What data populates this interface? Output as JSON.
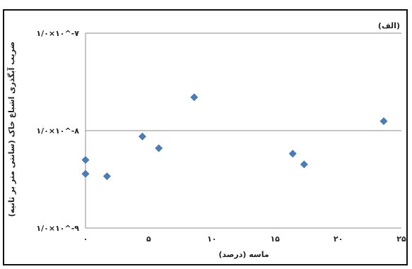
{
  "chart_data": {
    "type": "scatter",
    "panel_label": "(الف)",
    "xlabel": "ماسه (درصد)",
    "ylabel": "ضریب آبگذری اشباع خاک (سانتی متر بر ثانیه)",
    "x_ticks": [
      {
        "value": 0,
        "label": "۰"
      },
      {
        "value": 5,
        "label": "۵"
      },
      {
        "value": 10,
        "label": "۱۰"
      },
      {
        "value": 15,
        "label": "۱۵"
      },
      {
        "value": 20,
        "label": "۲۰"
      },
      {
        "value": 25,
        "label": "۲۵"
      }
    ],
    "y_ticks": [
      {
        "exp": -9,
        "label": "۱/۰×۱۰^-۹"
      },
      {
        "exp": -8,
        "label": "۱/۰×۱۰^-۸"
      },
      {
        "exp": -7,
        "label": "۱/۰×۱۰^-۷"
      }
    ],
    "xlim": [
      0,
      25
    ],
    "ylim_exponent": [
      -9,
      -7
    ],
    "y_scale": "log",
    "grid": "horizontal",
    "marker": "diamond",
    "marker_color": "#4a7ebb",
    "points": [
      {
        "x": 0,
        "y": 5e-09
      },
      {
        "x": 0,
        "y": 3.6e-09
      },
      {
        "x": 1.7,
        "y": 3.4e-09
      },
      {
        "x": 4.5,
        "y": 8.7e-09
      },
      {
        "x": 5.8,
        "y": 6.6e-09
      },
      {
        "x": 8.6,
        "y": 2.2e-08
      },
      {
        "x": 16.4,
        "y": 5.8e-09
      },
      {
        "x": 17.3,
        "y": 4.5e-09
      },
      {
        "x": 23.6,
        "y": 1.25e-08
      }
    ]
  }
}
